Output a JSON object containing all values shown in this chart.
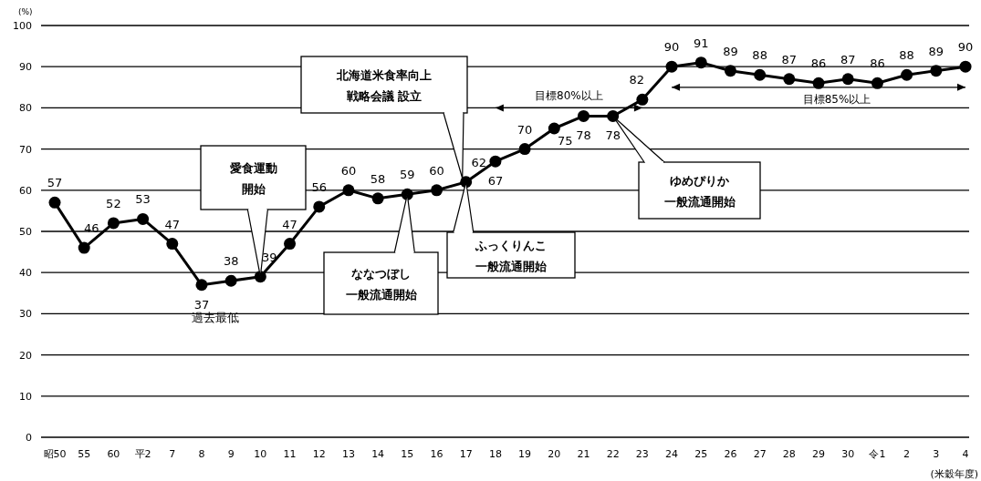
{
  "chart_data": {
    "type": "line",
    "ylabel": "(%)",
    "xlabel": "(米穀年度)",
    "categories": [
      "昭50",
      "55",
      "60",
      "平2",
      "7",
      "8",
      "9",
      "10",
      "11",
      "12",
      "13",
      "14",
      "15",
      "16",
      "17",
      "18",
      "19",
      "20",
      "21",
      "22",
      "23",
      "24",
      "25",
      "26",
      "27",
      "28",
      "29",
      "30",
      "令1",
      "2",
      "3",
      "4"
    ],
    "series": [
      {
        "color": "#000000",
        "marker": "circle",
        "values": [
          57,
          46,
          52,
          53,
          47,
          37,
          38,
          39,
          47,
          56,
          60,
          58,
          59,
          60,
          62,
          67,
          70,
          75,
          78,
          78,
          82,
          90,
          91,
          89,
          88,
          87,
          86,
          87,
          86,
          88,
          89,
          90
        ],
        "value_labels": [
          "57",
          "46",
          "52",
          "53",
          "47",
          "37",
          "38",
          "39",
          "47",
          "56",
          "60",
          "58",
          "59",
          "60",
          "62",
          "67",
          "70",
          "75",
          "78",
          "78",
          "82",
          "90",
          "91",
          "89",
          "88",
          "87",
          "86",
          "87",
          "86",
          "88",
          "89",
          "90"
        ]
      },
      {
        "type": "line",
        "name": "目標80%以上",
        "color": "#000000",
        "marker": "none",
        "values": [
          null,
          null,
          null,
          null,
          null,
          null,
          null,
          null,
          null,
          null,
          null,
          null,
          null,
          null,
          null,
          80,
          80,
          80,
          80,
          80,
          80,
          null,
          null,
          null,
          null,
          null,
          null,
          null,
          null,
          null,
          null,
          null
        ]
      },
      {
        "type": "line",
        "name": "目標85%以上",
        "color": "#000000",
        "marker": "none",
        "values": [
          null,
          null,
          null,
          null,
          null,
          null,
          null,
          null,
          null,
          null,
          null,
          null,
          null,
          null,
          null,
          null,
          null,
          null,
          null,
          null,
          null,
          85,
          85,
          85,
          85,
          85,
          85,
          85,
          85,
          85,
          85,
          85
        ]
      }
    ],
    "ylim": [
      0,
      100
    ],
    "yticks": [
      0,
      10,
      20,
      30,
      40,
      50,
      60,
      70,
      80,
      90,
      100
    ],
    "grid": "y",
    "annotations": [
      "北海道米食率向上戦略会議 設立",
      {
        "text": "愛食運動開始",
        "x": "10",
        "y": 39
      },
      {
        "text": "ななつぼし一般流通開始",
        "x": "15",
        "y": 59
      },
      {
        "text": "ふっくりんこ一般流通開始",
        "x": "17",
        "y": 62
      },
      "ゆめぴりか一般流通開始",
      {
        "text": "過去最低",
        "x": "8",
        "y": 37
      }
    ]
  }
}
